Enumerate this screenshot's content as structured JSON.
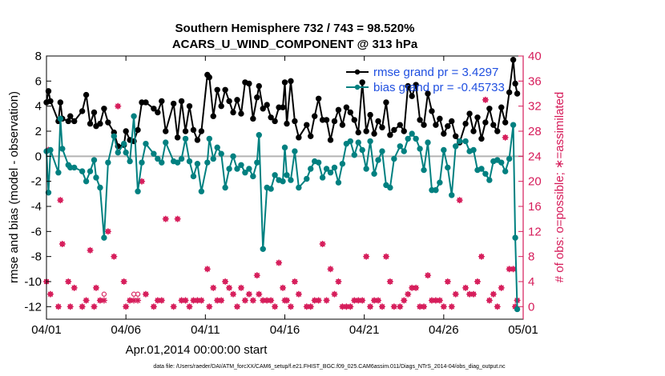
{
  "chart_data": {
    "type": "line",
    "title": "Southern Hemisphere 732 / 743 = 98.520%",
    "subtitle": "ACARS_U_WIND_COMPONENT @ 313 hPa",
    "xlabel": "Apr.01,2014 00:00:00 start",
    "ylabel_left": "rmse and bias (model - observation)",
    "ylabel_right": "# of obs: o=possible; ∗=assimilated",
    "footnote": "data file: /Users/raeder/DAI/ATM_forcXX/CAM6_setup/f.e21.FHIST_BGC.f09_025.CAM6assim.011/Diags_NTrS_2014-04/obs_diag_output.nc",
    "xlim": [
      0,
      30
    ],
    "ylim_left": [
      -13,
      8
    ],
    "ylim_right": [
      -2,
      40
    ],
    "x_ticks": [
      0,
      5,
      10,
      15,
      20,
      25,
      30
    ],
    "x_tick_labels": [
      "04/01",
      "04/06",
      "04/11",
      "04/16",
      "04/21",
      "04/26",
      "05/01"
    ],
    "y_ticks_left": [
      -12,
      -10,
      -8,
      -6,
      -4,
      -2,
      0,
      2,
      4,
      6,
      8
    ],
    "y_ticks_right": [
      0,
      4,
      8,
      12,
      16,
      20,
      24,
      28,
      32,
      36,
      40
    ],
    "grid": false,
    "legend_position": "top-right",
    "colors": {
      "rmse": "#000000",
      "bias": "#008080",
      "obs": "#d61c5a",
      "legend_text": "#1f4fe0",
      "zero_line": "#b3b3b3",
      "right_axis": "#d61c5a"
    },
    "series": [
      {
        "name": "rmse grand pr = 3.4297",
        "x": [
          0.0,
          0.125,
          0.25,
          0.75,
          0.875,
          1.0,
          1.375,
          1.5,
          1.75,
          2.25,
          2.5,
          2.75,
          3.0,
          3.125,
          3.375,
          3.625,
          3.875,
          4.25,
          4.5,
          4.875,
          5.0,
          5.25,
          5.5,
          5.75,
          6.0,
          6.25,
          6.75,
          7.0,
          7.25,
          7.5,
          8.0,
          8.25,
          8.5,
          8.75,
          9.0,
          9.25,
          9.5,
          9.75,
          10.125,
          10.25,
          10.5,
          10.75,
          11.0,
          11.25,
          11.5,
          11.75,
          12.0,
          12.25,
          12.5,
          12.75,
          13.0,
          13.25,
          13.375,
          13.625,
          13.875,
          14.125,
          14.375,
          14.625,
          14.875,
          15.0,
          15.125,
          15.375,
          15.625,
          15.875,
          16.375,
          16.625,
          16.875,
          17.125,
          17.375,
          17.625,
          17.875,
          18.125,
          18.375,
          18.625,
          18.875,
          19.125,
          19.375,
          19.625,
          19.875,
          20.125,
          20.375,
          20.625,
          20.875,
          21.125,
          21.375,
          21.625,
          21.875,
          22.25,
          22.5,
          22.75,
          23.0,
          23.25,
          23.5,
          23.75,
          24.0,
          24.25,
          24.5,
          24.75,
          25.0,
          25.25,
          25.5,
          25.75,
          26.0,
          26.375,
          26.625,
          26.875,
          27.125,
          27.375,
          27.625,
          27.875,
          28.125,
          28.375,
          28.625,
          28.875,
          29.125,
          29.375,
          29.5,
          29.625
        ],
        "y": [
          4.3,
          5.2,
          4.4,
          2.8,
          4.3,
          3.0,
          2.8,
          3.2,
          2.8,
          3.6,
          4.9,
          2.6,
          3.5,
          2.4,
          2.6,
          3.8,
          2.7,
          1.9,
          0.8,
          0.9,
          2.0,
          1.3,
          1.2,
          2.1,
          4.3,
          4.3,
          3.8,
          3.5,
          4.4,
          2.0,
          4.2,
          1.5,
          4.4,
          2.0,
          4.0,
          2.1,
          1.3,
          2.0,
          6.5,
          6.3,
          3.2,
          5.3,
          4.0,
          5.3,
          4.4,
          3.5,
          4.5,
          3.4,
          5.9,
          5.8,
          3.0,
          4.7,
          5.6,
          3.8,
          4.1,
          3.1,
          2.8,
          3.9,
          3.9,
          5.9,
          2.6,
          6.0,
          2.8,
          1.5,
          2.5,
          1.6,
          3.2,
          4.6,
          2.9,
          2.9,
          1.3,
          2.8,
          3.7,
          2.5,
          3.9,
          3.5,
          2.9,
          1.9,
          5.9,
          2.0,
          3.3,
          1.8,
          2.8,
          2.3,
          4.3,
          1.7,
          2.1,
          2.5,
          2.0,
          5.6,
          4.8,
          5.7,
          2.9,
          2.5,
          5.0,
          3.6,
          2.5,
          3.0,
          1.8,
          2.4,
          2.8,
          1.6,
          1.1,
          2.6,
          3.4,
          2.0,
          3.1,
          1.4,
          2.7,
          3.8,
          2.5,
          2.0,
          3.9,
          2.7,
          5.1,
          7.7,
          5.8,
          5.0
        ]
      },
      {
        "name": "bias grand pr = -0.45733",
        "x": [
          0.0,
          0.125,
          0.25,
          0.75,
          0.875,
          1.0,
          1.375,
          1.5,
          1.75,
          2.25,
          2.5,
          2.75,
          3.0,
          3.125,
          3.375,
          3.625,
          3.875,
          4.25,
          4.5,
          4.875,
          5.0,
          5.25,
          5.5,
          5.75,
          6.0,
          6.25,
          6.75,
          7.0,
          7.25,
          7.5,
          8.0,
          8.25,
          8.5,
          8.75,
          9.0,
          9.25,
          9.5,
          9.75,
          10.125,
          10.25,
          10.5,
          10.75,
          11.0,
          11.25,
          11.5,
          11.75,
          12.0,
          12.25,
          12.5,
          12.75,
          13.0,
          13.25,
          13.375,
          13.625,
          13.875,
          14.125,
          14.375,
          14.625,
          14.875,
          15.0,
          15.125,
          15.375,
          15.625,
          15.875,
          16.375,
          16.625,
          16.875,
          17.125,
          17.375,
          17.625,
          17.875,
          18.125,
          18.375,
          18.625,
          18.875,
          19.125,
          19.375,
          19.625,
          19.875,
          20.125,
          20.375,
          20.625,
          20.875,
          21.125,
          21.375,
          21.625,
          21.875,
          22.25,
          22.5,
          22.75,
          23.0,
          23.25,
          23.5,
          23.75,
          24.0,
          24.25,
          24.5,
          24.75,
          25.0,
          25.25,
          25.5,
          25.75,
          26.0,
          26.375,
          26.625,
          26.875,
          27.125,
          27.375,
          27.625,
          27.875,
          28.125,
          28.375,
          28.625,
          28.875,
          29.125,
          29.375,
          29.5,
          29.625
        ],
        "y": [
          0.4,
          -2.9,
          0.5,
          -1.3,
          3.0,
          0.6,
          -0.7,
          -0.9,
          -0.9,
          -1.2,
          -2.0,
          -1.2,
          -0.3,
          -1.7,
          -2.5,
          -6.5,
          -0.5,
          1.6,
          0.3,
          1.0,
          0.3,
          -0.4,
          3.2,
          -2.8,
          -0.5,
          1.0,
          0.2,
          -0.2,
          -0.5,
          1.1,
          -0.4,
          -0.5,
          -0.2,
          1.4,
          -0.4,
          -1.6,
          -0.6,
          -2.8,
          -0.5,
          1.4,
          -0.2,
          0.7,
          0.2,
          -2.5,
          -1.0,
          0.0,
          -1.0,
          -0.7,
          -1.3,
          -1.0,
          -1.6,
          -0.5,
          1.7,
          -7.4,
          -2.5,
          -2.6,
          -1.5,
          -1.9,
          -2.0,
          0.7,
          -1.5,
          -1.9,
          0.4,
          -2.5,
          -1.8,
          -1.0,
          -0.4,
          -0.5,
          -1.7,
          -1.0,
          -1.3,
          -0.9,
          -2.1,
          -0.6,
          1.0,
          1.2,
          0.1,
          1.1,
          0.5,
          -1.0,
          1.2,
          -1.4,
          -0.3,
          0.4,
          -2.3,
          -2.5,
          -0.2,
          0.8,
          0.4,
          1.4,
          1.8,
          1.4,
          0.6,
          -1.1,
          1.1,
          -2.7,
          -2.7,
          -2.1,
          0.5,
          -0.9,
          -3.1,
          0.8,
          1.2,
          1.2,
          0.4,
          0.5,
          -1.1,
          -1.0,
          -1.4,
          -1.9,
          -0.4,
          -0.3,
          -0.5,
          -1.2,
          -0.2,
          2.5,
          -6.5,
          -12.2
        ]
      }
    ],
    "obs_assimilated": {
      "x": [
        0.0,
        0.125,
        0.25,
        0.75,
        0.875,
        1.0,
        1.375,
        1.5,
        1.75,
        2.25,
        2.5,
        2.75,
        3.0,
        3.125,
        3.375,
        3.625,
        3.875,
        4.25,
        4.5,
        4.875,
        5.0,
        5.25,
        5.5,
        5.75,
        6.0,
        6.25,
        6.75,
        7.0,
        7.25,
        7.5,
        8.0,
        8.25,
        8.5,
        8.75,
        9.0,
        9.25,
        9.5,
        9.75,
        10.125,
        10.25,
        10.5,
        10.75,
        11.0,
        11.25,
        11.5,
        11.75,
        12.0,
        12.25,
        12.5,
        12.75,
        13.0,
        13.25,
        13.375,
        13.625,
        13.875,
        14.125,
        14.375,
        14.625,
        14.875,
        15.0,
        15.125,
        15.375,
        15.625,
        15.875,
        16.375,
        16.625,
        16.875,
        17.125,
        17.375,
        17.625,
        17.875,
        18.125,
        18.375,
        18.625,
        18.875,
        19.125,
        19.375,
        19.625,
        19.875,
        20.125,
        20.375,
        20.625,
        20.875,
        21.125,
        21.375,
        21.625,
        21.875,
        22.25,
        22.5,
        22.75,
        23.0,
        23.25,
        23.5,
        23.75,
        24.0,
        24.25,
        24.5,
        24.75,
        25.0,
        25.25,
        25.5,
        25.75,
        26.0,
        26.375,
        26.625,
        26.875,
        27.125,
        27.375,
        27.625,
        27.875,
        28.125,
        28.375,
        28.625,
        28.875,
        29.125,
        29.375,
        29.5,
        29.625
      ],
      "y": [
        4,
        25,
        2,
        0,
        17,
        10,
        4,
        0,
        3,
        0,
        1,
        9,
        0,
        3,
        1,
        1,
        12,
        8,
        32,
        4,
        0,
        1,
        1,
        1,
        20,
        2,
        0,
        1,
        1,
        14,
        0,
        14,
        1,
        1,
        0,
        1,
        1,
        1,
        6,
        0,
        3,
        1,
        1,
        4,
        3,
        2,
        0,
        3,
        1,
        2,
        1,
        5,
        2,
        1,
        1,
        1,
        0,
        7,
        3,
        1,
        1,
        0,
        4,
        2,
        0,
        0,
        1,
        1,
        10,
        1,
        6,
        2,
        4,
        0,
        0,
        0,
        1,
        1,
        1,
        8,
        0,
        1,
        1,
        0,
        8,
        4,
        0,
        0,
        1,
        2,
        3,
        3,
        0,
        0,
        5,
        1,
        1,
        1,
        0,
        4,
        0,
        2,
        17,
        3,
        2,
        2,
        4,
        8,
        33,
        1,
        2,
        0,
        3,
        27,
        6,
        6,
        0,
        1
      ]
    },
    "obs_possible": {
      "x": [
        0.0,
        0.125,
        0.25,
        0.75,
        0.875,
        1.0,
        1.375,
        1.5,
        1.75,
        2.25,
        2.5,
        2.75,
        3.0,
        3.125,
        3.375,
        3.625,
        3.875,
        4.25,
        4.5,
        4.875,
        5.0,
        5.25,
        5.5,
        5.75,
        6.0,
        6.25,
        6.75,
        7.0,
        7.25,
        7.5,
        8.0,
        8.25,
        8.5,
        8.75,
        9.0,
        9.25,
        9.5,
        9.75,
        10.125,
        10.25,
        10.5,
        10.75,
        11.0,
        11.25,
        11.5,
        11.75,
        12.0,
        12.25,
        12.5,
        12.75,
        13.0,
        13.25,
        13.375,
        13.625,
        13.875,
        14.125,
        14.375,
        14.625,
        14.875,
        15.0,
        15.125,
        15.375,
        15.625,
        15.875,
        16.375,
        16.625,
        16.875,
        17.125,
        17.375,
        17.625,
        17.875,
        18.125,
        18.375,
        18.625,
        18.875,
        19.125,
        19.375,
        19.625,
        19.875,
        20.125,
        20.375,
        20.625,
        20.875,
        21.125,
        21.375,
        21.625,
        21.875,
        22.25,
        22.5,
        22.75,
        23.0,
        23.25,
        23.5,
        23.75,
        24.0,
        24.25,
        24.5,
        24.75,
        25.0,
        25.25,
        25.5,
        25.75,
        26.0,
        26.375,
        26.625,
        26.875,
        27.125,
        27.375,
        27.625,
        27.875,
        28.125,
        28.375,
        28.625,
        28.875,
        29.125,
        29.375,
        29.5,
        29.625
      ],
      "y": [
        4,
        25,
        2,
        0,
        17,
        10,
        4,
        0,
        3,
        0,
        1,
        9,
        0,
        3,
        1,
        2,
        12,
        8,
        32,
        4,
        0,
        1,
        2,
        2,
        20,
        2,
        0,
        1,
        1,
        14,
        0,
        14,
        1,
        1,
        0,
        1,
        1,
        1,
        6,
        0,
        3,
        1,
        1,
        4,
        3,
        2,
        0,
        3,
        1,
        2,
        1,
        5,
        2,
        1,
        1,
        1,
        0,
        7,
        3,
        1,
        1,
        0,
        4,
        2,
        0,
        0,
        1,
        1,
        10,
        1,
        6,
        2,
        4,
        0,
        0,
        0,
        1,
        1,
        1,
        8,
        0,
        1,
        1,
        0,
        8,
        4,
        0,
        0,
        1,
        2,
        3,
        3,
        0,
        0,
        5,
        1,
        1,
        1,
        0,
        4,
        0,
        2,
        17,
        3,
        2,
        2,
        4,
        8,
        33,
        1,
        2,
        0,
        3,
        27,
        6,
        6,
        0,
        1
      ]
    }
  }
}
